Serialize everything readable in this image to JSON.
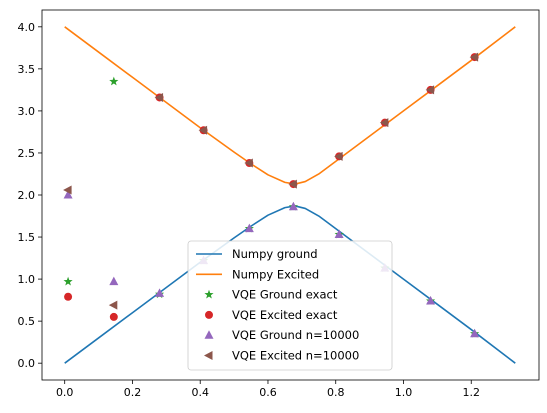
{
  "chart_data": {
    "type": "line",
    "title": "",
    "xlabel": "",
    "ylabel": "",
    "xlim": [
      -0.067,
      1.4
    ],
    "ylim": [
      -0.2,
      4.2
    ],
    "xticks": [
      0.0,
      0.2,
      0.4,
      0.6,
      0.8,
      1.0,
      1.2
    ],
    "yticks": [
      0.0,
      0.5,
      1.0,
      1.5,
      2.0,
      2.5,
      3.0,
      3.5,
      4.0
    ],
    "legend_position": "lower-center",
    "grid": false,
    "series": [
      {
        "name": "Numpy ground",
        "kind": "line",
        "color": "#1f77b4",
        "x": [
          0.0,
          0.1,
          0.2,
          0.3,
          0.4,
          0.5,
          0.55,
          0.6,
          0.65,
          0.68,
          0.71,
          0.75,
          0.8,
          0.9,
          1.0,
          1.1,
          1.2,
          1.33
        ],
        "y": [
          0.0,
          0.3,
          0.6,
          0.9,
          1.2,
          1.49,
          1.63,
          1.76,
          1.85,
          1.87,
          1.84,
          1.75,
          1.6,
          1.3,
          1.0,
          0.7,
          0.4,
          0.0
        ]
      },
      {
        "name": "Numpy Excited",
        "kind": "line",
        "color": "#ff7f0e",
        "x": [
          0.0,
          0.1,
          0.2,
          0.3,
          0.4,
          0.5,
          0.55,
          0.6,
          0.65,
          0.68,
          0.71,
          0.75,
          0.8,
          0.9,
          1.0,
          1.1,
          1.2,
          1.33
        ],
        "y": [
          4.0,
          3.7,
          3.4,
          3.1,
          2.8,
          2.51,
          2.37,
          2.24,
          2.15,
          2.13,
          2.16,
          2.25,
          2.4,
          2.7,
          3.0,
          3.3,
          3.6,
          4.0
        ]
      },
      {
        "name": "VQE Ground exact",
        "kind": "marker",
        "marker": "star",
        "color": "#2ca02c",
        "x": [
          0.01,
          0.145,
          0.28,
          0.41,
          0.545,
          0.675,
          0.81,
          0.945,
          1.08,
          1.21
        ],
        "y": [
          0.97,
          3.35,
          0.82,
          1.22,
          1.6,
          1.86,
          1.53,
          1.13,
          0.74,
          0.35
        ]
      },
      {
        "name": "VQE Excited exact",
        "kind": "marker",
        "marker": "circle",
        "color": "#d62728",
        "x": [
          0.01,
          0.145,
          0.28,
          0.41,
          0.545,
          0.675,
          0.81,
          0.945,
          1.08,
          1.21
        ],
        "y": [
          0.79,
          0.55,
          3.16,
          2.77,
          2.38,
          2.13,
          2.46,
          2.86,
          3.25,
          3.64
        ]
      },
      {
        "name": "VQE Ground n=10000",
        "kind": "marker",
        "marker": "triangle-up",
        "color": "#9467bd",
        "x": [
          0.01,
          0.145,
          0.28,
          0.41,
          0.545,
          0.675,
          0.81,
          0.945,
          1.08,
          1.21
        ],
        "y": [
          2.0,
          0.97,
          0.83,
          1.22,
          1.6,
          1.86,
          1.53,
          1.13,
          0.74,
          0.35
        ]
      },
      {
        "name": "VQE Excited n=10000",
        "kind": "marker",
        "marker": "triangle-left",
        "color": "#8c564b",
        "x": [
          0.01,
          0.145,
          0.28,
          0.41,
          0.545,
          0.675,
          0.81,
          0.945,
          1.08,
          1.21
        ],
        "y": [
          2.06,
          0.69,
          3.16,
          2.77,
          2.38,
          2.13,
          2.46,
          2.86,
          3.25,
          3.64
        ]
      }
    ]
  }
}
